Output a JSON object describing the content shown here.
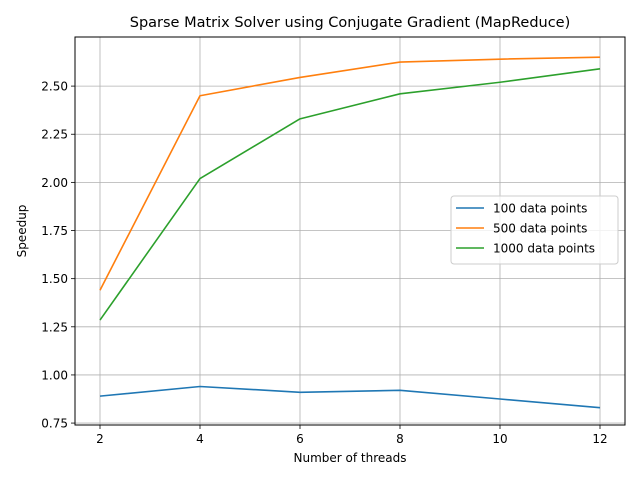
{
  "chart_data": {
    "type": "line",
    "title": "Sparse Matrix Solver using Conjugate Gradient (MapReduce)",
    "xlabel": "Number of threads",
    "ylabel": "Speedup",
    "x": [
      2,
      4,
      6,
      8,
      10,
      12
    ],
    "xlim": [
      1.5,
      12.5
    ],
    "ylim": [
      0.74,
      2.755
    ],
    "xticks": [
      2,
      4,
      6,
      8,
      10,
      12
    ],
    "xtick_labels": [
      "2",
      "4",
      "6",
      "8",
      "10",
      "12"
    ],
    "yticks": [
      0.75,
      1.0,
      1.25,
      1.5,
      1.75,
      2.0,
      2.25,
      2.5
    ],
    "ytick_labels": [
      "0.75",
      "1.00",
      "1.25",
      "1.50",
      "1.75",
      "2.00",
      "2.25",
      "2.50"
    ],
    "grid": true,
    "legend_position": "center-right",
    "series": [
      {
        "name": "100 data points",
        "color": "#1f77b4",
        "values": [
          0.89,
          0.94,
          0.91,
          0.92,
          0.875,
          0.83
        ]
      },
      {
        "name": "500 data points",
        "color": "#ff7f0e",
        "values": [
          1.44,
          2.45,
          2.545,
          2.625,
          2.64,
          2.65
        ]
      },
      {
        "name": "1000 data points",
        "color": "#2ca02c",
        "values": [
          1.285,
          2.02,
          2.33,
          2.46,
          2.52,
          2.59
        ]
      }
    ]
  }
}
